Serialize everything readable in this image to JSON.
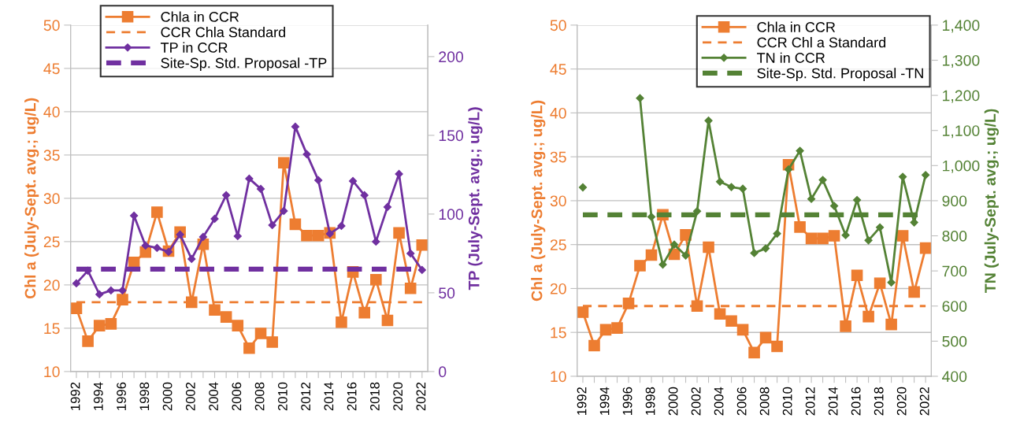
{
  "chart_data": [
    {
      "type": "line",
      "ylabel": "Chl a (July-Sept. avg.; ug/L)",
      "y2label": "TP (July-Sept. avg.; ug/L)",
      "x": [
        1992,
        1993,
        1994,
        1995,
        1996,
        1997,
        1998,
        1999,
        2000,
        2001,
        2002,
        2003,
        2004,
        2005,
        2006,
        2007,
        2008,
        2009,
        2010,
        2011,
        2012,
        2013,
        2014,
        2015,
        2016,
        2017,
        2018,
        2019,
        2020,
        2021,
        2022
      ],
      "xlim": [
        1991.5,
        2022.5
      ],
      "xticks": [
        1992,
        {
          "value": 1993,
          "label": null
        },
        1994,
        {
          "value": 1995,
          "label": null
        },
        1996,
        {
          "value": 1997,
          "label": null
        },
        1998,
        {
          "value": 1999,
          "label": null
        },
        2000,
        {
          "value": 2001,
          "label": null
        },
        2002,
        {
          "value": 2003,
          "label": null
        },
        2004,
        {
          "value": 2005,
          "label": null
        },
        2006,
        {
          "value": 2007,
          "label": null
        },
        2008,
        {
          "value": 2009,
          "label": null
        },
        2010,
        {
          "value": 2011,
          "label": null
        },
        2012,
        {
          "value": 2013,
          "label": null
        },
        2014,
        {
          "value": 2015,
          "label": null
        },
        2016,
        {
          "value": 2017,
          "label": null
        },
        2018,
        {
          "value": 2019,
          "label": null
        },
        2020,
        {
          "value": 2021,
          "label": null
        },
        2022
      ],
      "ylim": [
        10,
        50
      ],
      "yticks": [
        10,
        15,
        20,
        25,
        30,
        35,
        40,
        45,
        50
      ],
      "y2lim": [
        0,
        220
      ],
      "y2ticks": [
        0,
        50,
        100,
        150,
        200
      ],
      "series": [
        {
          "name": "Chla in CCR",
          "color": "#ed7d31",
          "marker": "square",
          "values": [
            17.3,
            13.5,
            15.3,
            15.5,
            18.3,
            22.6,
            23.8,
            28.4,
            23.9,
            26.1,
            18.0,
            24.7,
            17.1,
            16.3,
            15.3,
            12.7,
            14.4,
            13.4,
            34.1,
            27.0,
            25.7,
            25.7,
            26.0,
            15.7,
            21.5,
            16.8,
            20.6,
            15.9,
            26.0,
            19.6,
            24.6
          ]
        },
        {
          "name": "TP in CCR",
          "color": "#7030a0",
          "marker": "diamond",
          "axis": "y2",
          "values": [
            56,
            64,
            49,
            51.5,
            51.5,
            99,
            80,
            78.5,
            76,
            87,
            71.5,
            85.5,
            97,
            112,
            86,
            122.5,
            116,
            93,
            102,
            155.5,
            138,
            121.5,
            87.5,
            92.5,
            121,
            112,
            82.5,
            104.5,
            125.5,
            75,
            64.5
          ]
        }
      ],
      "ref_lines": [
        {
          "axis": "y",
          "value": 18,
          "label": "CCR Chla Standard",
          "color": "#ed7d31",
          "line_style": "dashed"
        },
        {
          "axis": "y2",
          "value": 65,
          "label": "Site-Sp. Std. Proposal -TP",
          "color": "#7030a0",
          "line_style": "dashed"
        }
      ],
      "grid": "y",
      "legend": "top left",
      "line_style": "solid"
    },
    {
      "type": "line",
      "ylabel": "Chl a (July-Sept. avg.; ug/L)",
      "y2label": "TN (July-Sept. avg.; ug/L)",
      "x": [
        1992,
        1993,
        1994,
        1995,
        1996,
        1997,
        1998,
        1999,
        2000,
        2001,
        2002,
        2003,
        2004,
        2005,
        2006,
        2007,
        2008,
        2009,
        2010,
        2011,
        2012,
        2013,
        2014,
        2015,
        2016,
        2017,
        2018,
        2019,
        2020,
        2021,
        2022
      ],
      "xlim": [
        1991.5,
        2022.5
      ],
      "xticks": [
        1992,
        {
          "value": 1993,
          "label": null
        },
        1994,
        {
          "value": 1995,
          "label": null
        },
        1996,
        {
          "value": 1997,
          "label": null
        },
        1998,
        {
          "value": 1999,
          "label": null
        },
        2000,
        {
          "value": 2001,
          "label": null
        },
        2002,
        {
          "value": 2003,
          "label": null
        },
        2004,
        {
          "value": 2005,
          "label": null
        },
        2006,
        {
          "value": 2007,
          "label": null
        },
        2008,
        {
          "value": 2009,
          "label": null
        },
        2010,
        {
          "value": 2011,
          "label": null
        },
        2012,
        {
          "value": 2013,
          "label": null
        },
        2014,
        {
          "value": 2015,
          "label": null
        },
        2016,
        {
          "value": 2017,
          "label": null
        },
        2018,
        {
          "value": 2019,
          "label": null
        },
        2020,
        {
          "value": 2021,
          "label": null
        },
        2022
      ],
      "ylim": [
        10,
        50
      ],
      "yticks": [
        10,
        15,
        20,
        25,
        30,
        35,
        40,
        45,
        50
      ],
      "y2lim": [
        400,
        1400
      ],
      "y2ticks": [
        400,
        500,
        600,
        700,
        800,
        900,
        {
          "value": 1000,
          "label": "1,000"
        },
        {
          "value": 1100,
          "label": "1,100"
        },
        {
          "value": 1200,
          "label": "1,200"
        },
        {
          "value": 1300,
          "label": "1,300"
        },
        {
          "value": 1400,
          "label": "1,400"
        }
      ],
      "series": [
        {
          "name": "Chla in CCR",
          "color": "#ed7d31",
          "marker": "square",
          "values": [
            17.3,
            13.5,
            15.3,
            15.5,
            18.3,
            22.6,
            23.8,
            28.4,
            23.9,
            26.1,
            18.0,
            24.7,
            17.1,
            16.3,
            15.3,
            12.7,
            14.4,
            13.4,
            34.1,
            27.0,
            25.7,
            25.7,
            26.0,
            15.7,
            21.5,
            16.8,
            20.6,
            15.9,
            26.0,
            19.6,
            24.6
          ]
        },
        {
          "name": "TN in CCR",
          "color": "#548235",
          "marker": "diamond",
          "axis": "y2",
          "values": [
            938,
            null,
            null,
            null,
            null,
            1192,
            854,
            718,
            775,
            744,
            870,
            1128,
            954,
            939,
            934,
            751,
            764,
            806,
            989,
            1042,
            905,
            959,
            885,
            802,
            902,
            787,
            824,
            667,
            968,
            838,
            973
          ]
        }
      ],
      "ref_lines": [
        {
          "axis": "y",
          "value": 18,
          "label": "CCR Chl a Standard",
          "color": "#ed7d31",
          "line_style": "dashed"
        },
        {
          "axis": "y2",
          "value": 860,
          "label": "Site-Sp. Std. Proposal -TN",
          "color": "#548235",
          "line_style": "dashed"
        }
      ],
      "grid": "y",
      "legend": "top right",
      "line_style": "solid"
    }
  ]
}
